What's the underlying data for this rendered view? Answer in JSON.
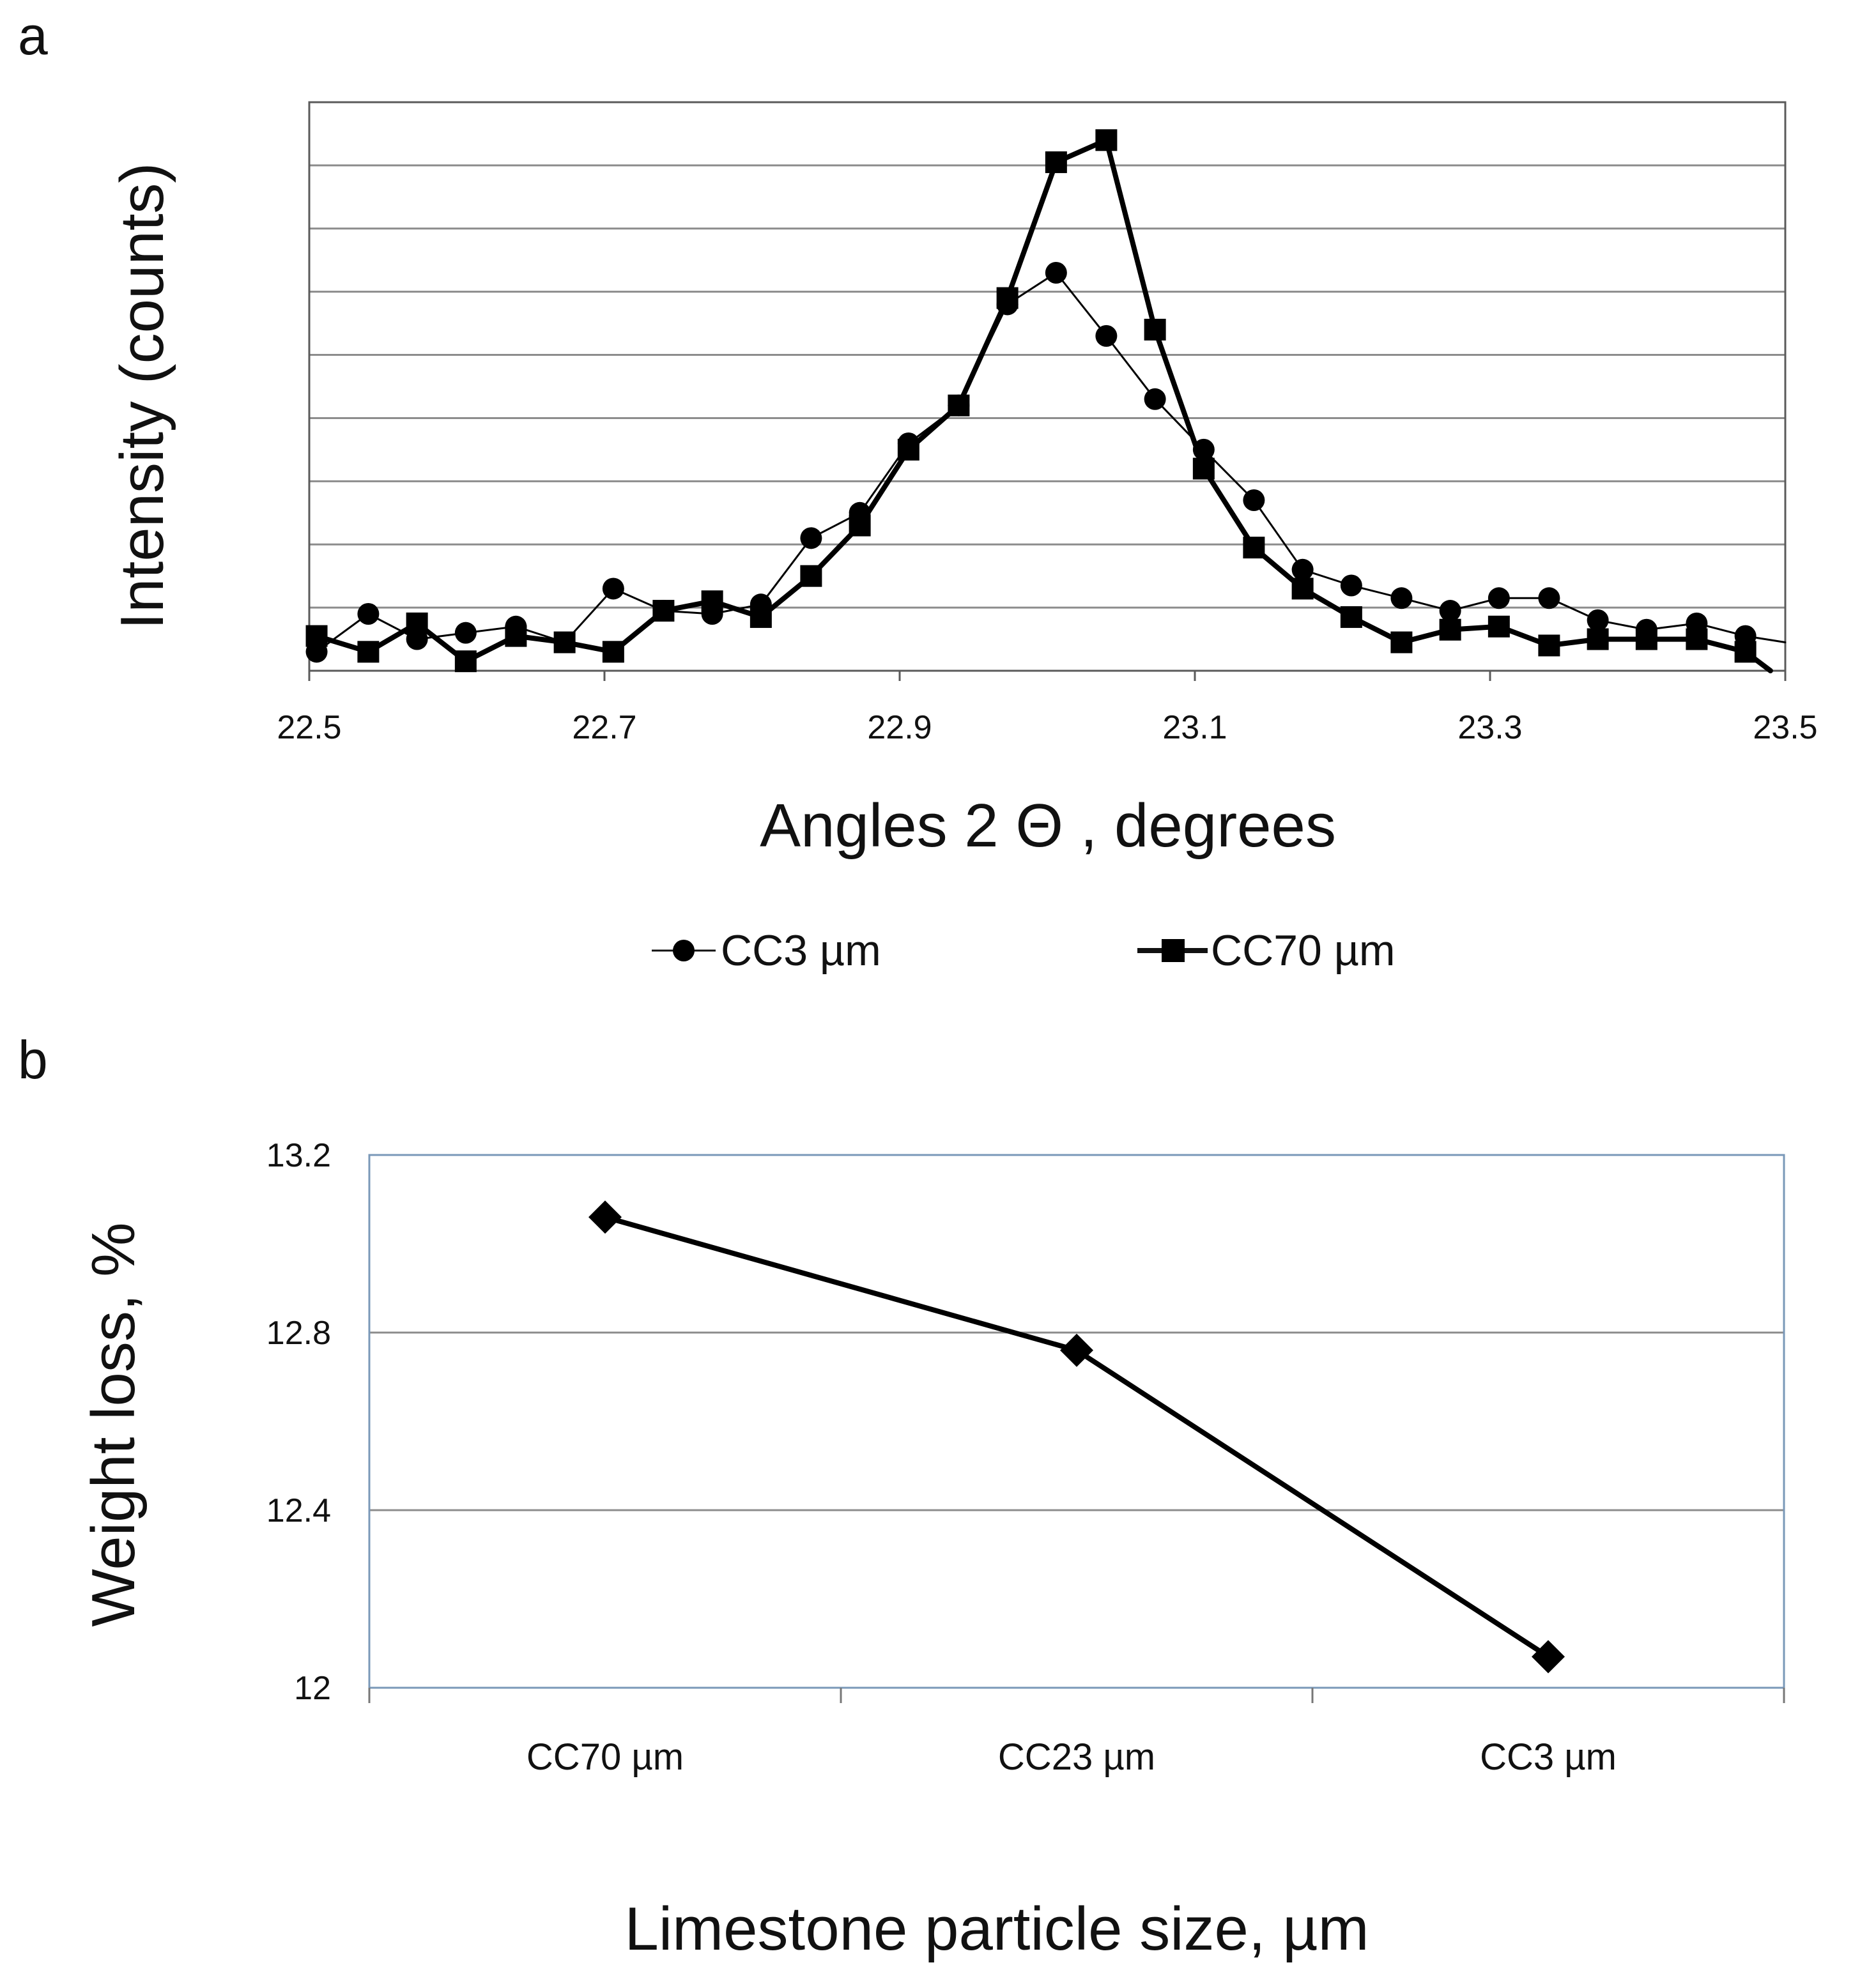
{
  "chart_data": [
    {
      "panel": "a",
      "type": "line",
      "xlabel": "Angles 2 Θ , degrees",
      "ylabel": "Intensity (counts)",
      "xlim": [
        22.5,
        23.5
      ],
      "ylim": [
        0,
        9
      ],
      "xticks": [
        "22.5",
        "22.7",
        "22.9",
        "23.1",
        "23.3",
        "23.5"
      ],
      "grid": true,
      "legend_position": "bottom",
      "series": [
        {
          "name": "CC3 µm",
          "marker": "circle",
          "line": "thin",
          "x": [
            22.505,
            22.54,
            22.573,
            22.606,
            22.64,
            22.673,
            22.706,
            22.74,
            22.773,
            22.806,
            22.84,
            22.873,
            22.906,
            22.94,
            22.973,
            23.006,
            23.04,
            23.073,
            23.106,
            23.14,
            23.173,
            23.206,
            23.24,
            23.273,
            23.306,
            23.34,
            23.373,
            23.406,
            23.44,
            23.473,
            23.5
          ],
          "y": [
            0.3,
            0.9,
            0.5,
            0.6,
            0.7,
            0.45,
            1.3,
            0.95,
            0.9,
            1.05,
            2.1,
            2.5,
            3.6,
            4.2,
            5.8,
            6.3,
            5.3,
            4.3,
            3.5,
            2.7,
            1.6,
            1.35,
            1.15,
            0.95,
            1.15,
            1.15,
            0.8,
            0.65,
            0.75,
            0.55,
            0.45
          ]
        },
        {
          "name": "CC70 µm",
          "marker": "square",
          "line": "thick",
          "x": [
            22.505,
            22.54,
            22.573,
            22.606,
            22.64,
            22.673,
            22.706,
            22.74,
            22.773,
            22.806,
            22.84,
            22.873,
            22.906,
            22.94,
            22.973,
            23.006,
            23.04,
            23.073,
            23.106,
            23.14,
            23.173,
            23.206,
            23.24,
            23.273,
            23.306,
            23.34,
            23.373,
            23.406,
            23.44,
            23.473,
            23.49
          ],
          "y": [
            0.55,
            0.3,
            0.75,
            0.15,
            0.55,
            0.45,
            0.3,
            0.95,
            1.1,
            0.85,
            1.5,
            2.3,
            3.5,
            4.2,
            5.9,
            8.05,
            8.4,
            5.4,
            3.2,
            1.95,
            1.3,
            0.85,
            0.45,
            0.65,
            0.7,
            0.4,
            0.5,
            0.5,
            0.5,
            0.3,
            0.0
          ]
        }
      ]
    },
    {
      "panel": "b",
      "type": "line",
      "xlabel": "Limestone particle size, µm",
      "ylabel": "Weight loss, %",
      "ylim": [
        12,
        13.2
      ],
      "yticks": [
        "12",
        "12.4",
        "12.8",
        "13.2"
      ],
      "categories": [
        "CC70 µm",
        "CC23 µm",
        "CC3 µm"
      ],
      "grid": true,
      "series": [
        {
          "name": "Weight loss",
          "marker": "diamond",
          "values": [
            13.06,
            12.76,
            12.07
          ]
        }
      ]
    }
  ]
}
